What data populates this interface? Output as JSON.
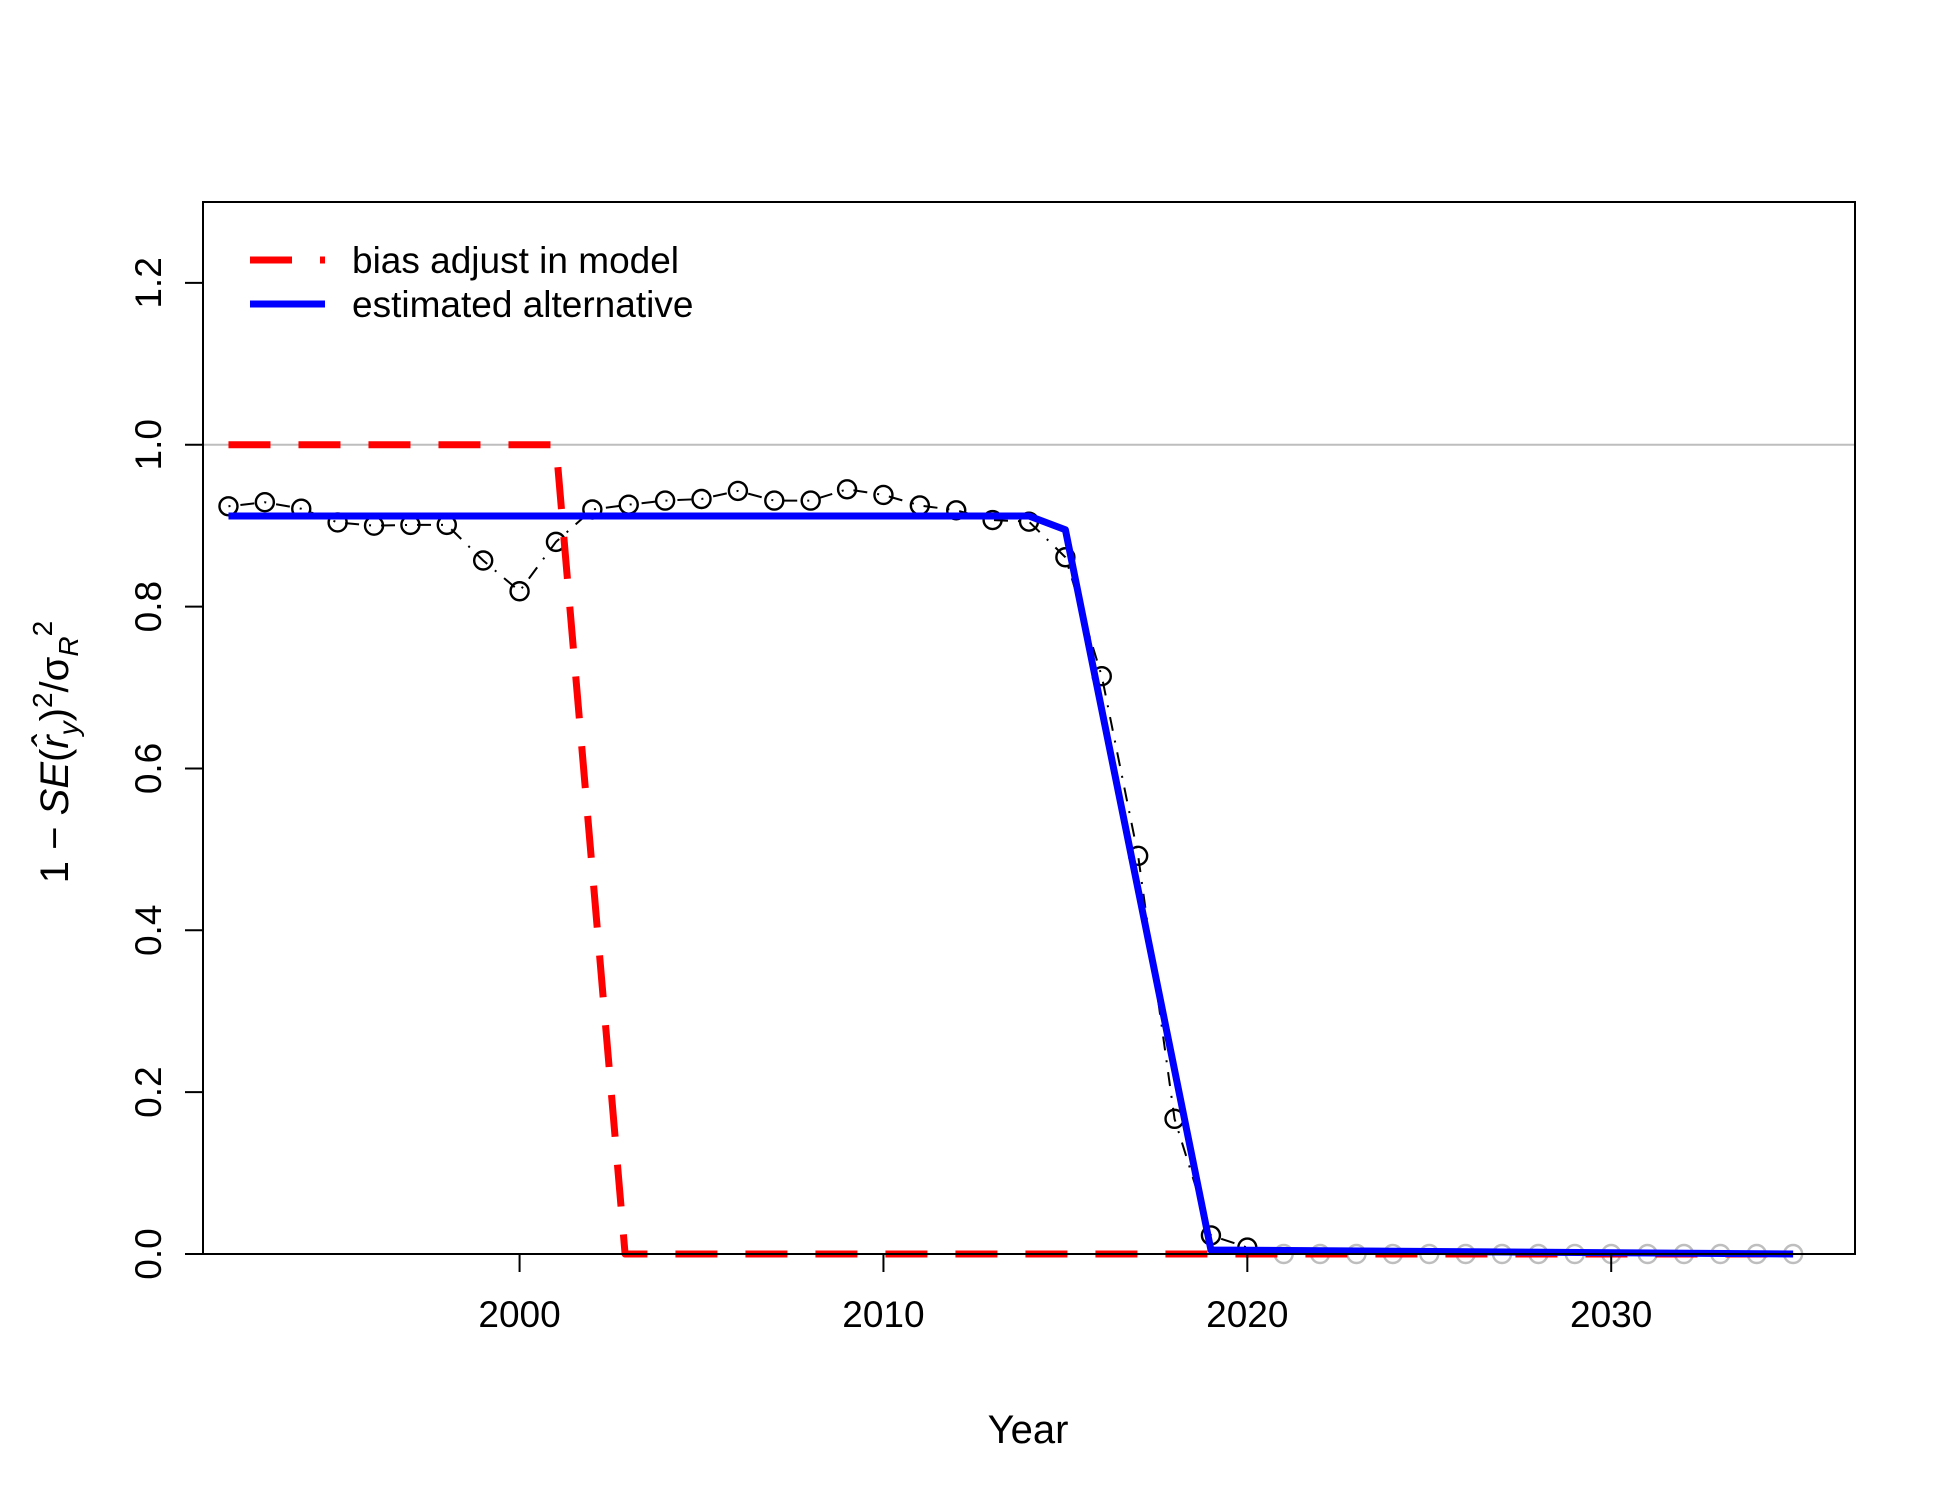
{
  "chart_data": {
    "type": "line",
    "title": "",
    "xlabel": "Year",
    "ylabel": "1 − SE(r̂_y)² / σ_R²",
    "xlim": [
      1991.3,
      2036.7
    ],
    "ylim": [
      0,
      1.3
    ],
    "x_ticks": [
      "2000",
      "2010",
      "2020",
      "2030"
    ],
    "x_tick_values": [
      2000,
      2010,
      2020,
      2030
    ],
    "y_ticks": [
      "0.0",
      "0.2",
      "0.4",
      "0.6",
      "0.8",
      "1.0",
      "1.2"
    ],
    "y_tick_values": [
      0.0,
      0.2,
      0.4,
      0.6,
      0.8,
      1.0,
      1.2
    ],
    "grid": false,
    "reference_line": {
      "y": 1.0,
      "color": "#bebebe"
    },
    "legend": {
      "position": "top-left",
      "entries": [
        {
          "label": "bias adjust in model",
          "color": "#ff0000",
          "style": "dashed"
        },
        {
          "label": "estimated alternative",
          "color": "#0000ff",
          "style": "solid"
        }
      ]
    },
    "series": [
      {
        "name": "bias adjust in model",
        "color": "#ff0000",
        "style": "dashed",
        "x": [
          1992,
          2001,
          2002.9,
          2035
        ],
        "y": [
          1.0,
          1.0,
          0.0,
          0.0
        ]
      },
      {
        "name": "estimated alternative",
        "color": "#0000ff",
        "style": "solid",
        "x": [
          1992,
          2014,
          2015,
          2019,
          2035
        ],
        "y": [
          0.912,
          0.912,
          0.895,
          0.005,
          0.0
        ]
      }
    ],
    "points": {
      "x": [
        1992,
        1993,
        1994,
        1995,
        1996,
        1997,
        1998,
        1999,
        2000,
        2001,
        2002,
        2003,
        2004,
        2005,
        2006,
        2007,
        2008,
        2009,
        2010,
        2011,
        2012,
        2013,
        2014,
        2015,
        2016,
        2017,
        2018,
        2019,
        2020,
        2021,
        2022,
        2023,
        2024,
        2025,
        2026,
        2027,
        2028,
        2029,
        2030,
        2031,
        2032,
        2033,
        2034,
        2035
      ],
      "y": [
        0.924,
        0.929,
        0.921,
        0.904,
        0.9,
        0.901,
        0.901,
        0.857,
        0.819,
        0.88,
        0.92,
        0.926,
        0.931,
        0.933,
        0.943,
        0.931,
        0.931,
        0.945,
        0.938,
        0.925,
        0.919,
        0.907,
        0.905,
        0.861,
        0.714,
        0.492,
        0.167,
        0.023,
        0.008,
        0,
        0,
        0,
        0,
        0,
        0,
        0,
        0,
        0,
        0,
        0,
        0,
        0,
        0,
        0
      ],
      "connector_style": "dash-dot",
      "color_observed": "#000000",
      "color_future": "#bebebe",
      "future_from_index": 29
    }
  }
}
